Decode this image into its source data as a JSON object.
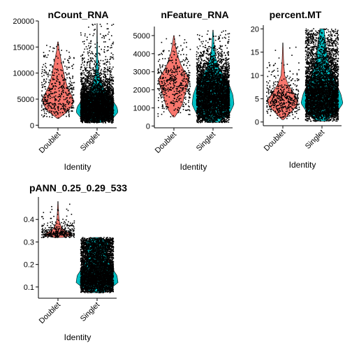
{
  "chart_data": [
    {
      "type": "violin",
      "title": "nCount_RNA",
      "xlabel": "Identity",
      "ylabel": "",
      "categories": [
        "Doublet",
        "Singlet"
      ],
      "yticks": [
        0,
        5000,
        10000,
        15000,
        20000
      ],
      "ytick_labels": [
        "0",
        "5000",
        "10000",
        "15000",
        "20000"
      ],
      "ylim": [
        -500,
        20000
      ],
      "series": [
        {
          "category": "Doublet",
          "color": "#F8766D",
          "point_count": 450,
          "median": 4800,
          "min": 1300,
          "max": 16000,
          "profile": [
            [
              1300,
              0.05
            ],
            [
              2000,
              0.35
            ],
            [
              3000,
              0.75
            ],
            [
              4000,
              0.95
            ],
            [
              5000,
              1.0
            ],
            [
              6000,
              0.85
            ],
            [
              7500,
              0.6
            ],
            [
              9000,
              0.45
            ],
            [
              10500,
              0.35
            ],
            [
              12500,
              0.2
            ],
            [
              14500,
              0.08
            ],
            [
              16000,
              0.02
            ]
          ]
        },
        {
          "category": "Singlet",
          "color": "#00BFC4",
          "point_count": 4500,
          "median": 3000,
          "min": 500,
          "max": 19500,
          "profile": [
            [
              500,
              0.2
            ],
            [
              1500,
              0.8
            ],
            [
              2500,
              1.0
            ],
            [
              3500,
              0.95
            ],
            [
              5000,
              0.7
            ],
            [
              6500,
              0.4
            ],
            [
              8000,
              0.2
            ],
            [
              10000,
              0.08
            ],
            [
              13000,
              0.03
            ],
            [
              16000,
              0.015
            ],
            [
              19500,
              0.005
            ]
          ]
        }
      ]
    },
    {
      "type": "violin",
      "title": "nFeature_RNA",
      "xlabel": "Identity",
      "ylabel": "",
      "categories": [
        "Doublet",
        "Singlet"
      ],
      "yticks": [
        0,
        1000,
        2000,
        3000,
        4000,
        5000
      ],
      "ytick_labels": [
        "0",
        "1000",
        "2000",
        "3000",
        "4000",
        "5000"
      ],
      "ylim": [
        -100,
        5500
      ],
      "series": [
        {
          "category": "Doublet",
          "color": "#F8766D",
          "point_count": 450,
          "median": 2300,
          "min": 500,
          "max": 5000,
          "profile": [
            [
              500,
              0.05
            ],
            [
              800,
              0.3
            ],
            [
              1200,
              0.55
            ],
            [
              1700,
              0.7
            ],
            [
              2200,
              0.9
            ],
            [
              2600,
              1.0
            ],
            [
              3000,
              0.7
            ],
            [
              3400,
              0.45
            ],
            [
              4000,
              0.2
            ],
            [
              4500,
              0.1
            ],
            [
              5000,
              0.02
            ]
          ]
        },
        {
          "category": "Singlet",
          "color": "#00BFC4",
          "point_count": 4500,
          "median": 1400,
          "min": 200,
          "max": 5300,
          "profile": [
            [
              200,
              0.3
            ],
            [
              700,
              0.8
            ],
            [
              1200,
              1.0
            ],
            [
              1700,
              0.95
            ],
            [
              2200,
              0.8
            ],
            [
              2700,
              0.55
            ],
            [
              3200,
              0.3
            ],
            [
              3800,
              0.12
            ],
            [
              4500,
              0.05
            ],
            [
              5300,
              0.01
            ]
          ]
        }
      ]
    },
    {
      "type": "violin",
      "title": "percent.MT",
      "xlabel": "Identity",
      "ylabel": "",
      "categories": [
        "Doublet",
        "Singlet"
      ],
      "yticks": [
        0,
        5,
        10,
        15,
        20
      ],
      "ytick_labels": [
        "0",
        "5",
        "10",
        "15",
        "20"
      ],
      "ylim": [
        -0.8,
        20.8
      ],
      "series": [
        {
          "category": "Doublet",
          "color": "#F8766D",
          "point_count": 450,
          "median": 4.5,
          "min": 0.5,
          "max": 17,
          "profile": [
            [
              0.5,
              0.05
            ],
            [
              2,
              0.5
            ],
            [
              3.5,
              0.9
            ],
            [
              4.5,
              1.0
            ],
            [
              6,
              0.75
            ],
            [
              8,
              0.35
            ],
            [
              10,
              0.12
            ],
            [
              13,
              0.05
            ],
            [
              17,
              0.01
            ]
          ]
        },
        {
          "category": "Singlet",
          "color": "#00BFC4",
          "point_count": 4500,
          "median": 5,
          "min": 0.2,
          "max": 20,
          "profile": [
            [
              0.2,
              0.2
            ],
            [
              2,
              0.7
            ],
            [
              4,
              1.0
            ],
            [
              6,
              0.9
            ],
            [
              8,
              0.7
            ],
            [
              10,
              0.5
            ],
            [
              12,
              0.35
            ],
            [
              14,
              0.25
            ],
            [
              16,
              0.2
            ],
            [
              18,
              0.15
            ],
            [
              20,
              0.1
            ]
          ]
        }
      ]
    },
    {
      "type": "violin",
      "title": "pANN_0.25_0.29_533",
      "xlabel": "Identity",
      "ylabel": "",
      "categories": [
        "Doublet",
        "Singlet"
      ],
      "yticks": [
        0.1,
        0.2,
        0.3,
        0.4
      ],
      "ytick_labels": [
        "0.1",
        "0.2",
        "0.3",
        "0.4"
      ],
      "ylim": [
        0.05,
        0.5
      ],
      "series": [
        {
          "category": "Doublet",
          "color": "#F8766D",
          "point_count": 350,
          "median": 0.335,
          "min": 0.32,
          "max": 0.48,
          "profile": [
            [
              0.32,
              0.3
            ],
            [
              0.33,
              1.0
            ],
            [
              0.34,
              0.7
            ],
            [
              0.355,
              0.35
            ],
            [
              0.37,
              0.2
            ],
            [
              0.39,
              0.1
            ],
            [
              0.42,
              0.05
            ],
            [
              0.48,
              0.01
            ]
          ]
        },
        {
          "category": "Singlet",
          "color": "#00BFC4",
          "point_count": 4500,
          "median": 0.14,
          "min": 0.075,
          "max": 0.32,
          "profile": [
            [
              0.075,
              0.3
            ],
            [
              0.09,
              0.6
            ],
            [
              0.12,
              1.0
            ],
            [
              0.15,
              0.95
            ],
            [
              0.18,
              0.75
            ],
            [
              0.21,
              0.55
            ],
            [
              0.24,
              0.45
            ],
            [
              0.27,
              0.5
            ],
            [
              0.3,
              0.55
            ],
            [
              0.32,
              0.2
            ]
          ]
        }
      ]
    }
  ]
}
